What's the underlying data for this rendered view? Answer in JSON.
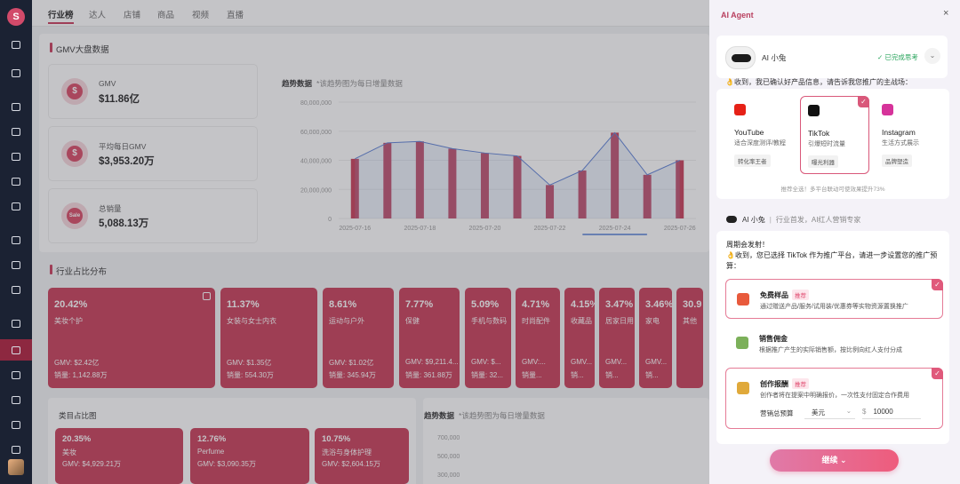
{
  "sidebar": {
    "logo_text": "S",
    "icons": [
      "cloud-icon",
      "chat-icon",
      "user-icon",
      "user-icon",
      "user-icon",
      "shop-icon",
      "doc-icon",
      "box-icon",
      "layers-icon",
      "person-icon",
      "diamond-icon",
      "analytics-icon",
      "user-icon",
      "user-icon",
      "edit-icon",
      "bag-icon"
    ]
  },
  "tabs": [
    "行业榜",
    "达人",
    "店铺",
    "商品",
    "视频",
    "直播"
  ],
  "gmv_section": {
    "title": "GMV大盘数据"
  },
  "kpis": [
    {
      "label": "GMV",
      "value": "$11.86亿",
      "icon": "dollar-icon",
      "glyph": "$"
    },
    {
      "label": "平均每日GMV",
      "value": "$3,953.20万",
      "icon": "dollar-icon",
      "glyph": "$"
    },
    {
      "label": "总销量",
      "value": "5,088.13万",
      "icon": "sale-icon",
      "glyph": "Sale"
    }
  ],
  "trend_chart": {
    "title": "趋势数据",
    "note": "*该趋势图为每日增量数据"
  },
  "chart_data": {
    "type": "bar",
    "categories": [
      "2025-07-16",
      "2025-07-17",
      "2025-07-18",
      "2025-07-19",
      "2025-07-20",
      "2025-07-21",
      "2025-07-22",
      "2025-07-23",
      "2025-07-24",
      "2025-07-25",
      "2025-07-26"
    ],
    "x_tick_labels": [
      "2025-07-16",
      "2025-07-18",
      "2025-07-20",
      "2025-07-22",
      "2025-07-24",
      "2025-07-26"
    ],
    "values": [
      41000000,
      52000000,
      53000000,
      48000000,
      45000000,
      43000000,
      23000000,
      33000000,
      59000000,
      30000000,
      40000000
    ],
    "line_values": [
      41000000,
      52000000,
      53000000,
      48000000,
      45000000,
      43000000,
      23000000,
      33000000,
      59000000,
      30000000,
      40000000
    ],
    "yticks": [
      "80,000,000",
      "60,000,000",
      "40,000,000",
      "20,000,000",
      "0"
    ],
    "ylim": [
      0,
      80000000
    ],
    "grid": true
  },
  "industry": {
    "title": "行业占比分布",
    "tiles": [
      {
        "pct": "20.42%",
        "name": "美妆个护",
        "gmv": "GMV: $2.42亿",
        "sales": "销量: 1,142.88万"
      },
      {
        "pct": "11.37%",
        "name": "女装与女士内衣",
        "gmv": "GMV: $1.35亿",
        "sales": "销量: 554.30万"
      },
      {
        "pct": "8.61%",
        "name": "运动与户外",
        "gmv": "GMV: $1.02亿",
        "sales": "销量: 345.94万"
      },
      {
        "pct": "7.77%",
        "name": "保健",
        "gmv": "GMV: $9,211.4...",
        "sales": "销量: 361.88万"
      },
      {
        "pct": "5.09%",
        "name": "手机与数码",
        "gmv": "GMV: $...",
        "sales": "销量: 32..."
      },
      {
        "pct": "4.71%",
        "name": "时尚配件",
        "gmv": "GMV:...",
        "sales": "销量..."
      },
      {
        "pct": "4.15%",
        "name": "收藏品",
        "gmv": "GMV...",
        "sales": "销..."
      },
      {
        "pct": "3.47%",
        "name": "居家日用",
        "gmv": "GMV...",
        "sales": "销..."
      },
      {
        "pct": "3.46%",
        "name": "家电",
        "gmv": "GMV...",
        "sales": "销..."
      },
      {
        "pct": "30.9",
        "name": "其他",
        "gmv": "",
        "sales": ""
      }
    ]
  },
  "category": {
    "title": "类目占比图",
    "tiles": [
      {
        "pct": "20.35%",
        "name": "美妆",
        "gmv": "GMV: $4,929.21万"
      },
      {
        "pct": "12.76%",
        "name": "Perfume",
        "gmv": "GMV: $3,090.35万"
      },
      {
        "pct": "10.75%",
        "name": "洗浴与身体护理",
        "gmv": "GMV: $2,604.15万"
      }
    ]
  },
  "trend2": {
    "title": "趋势数据",
    "note": "*该趋势图为每日增量数据",
    "yticks": [
      "700,000",
      "500,000",
      "300,000"
    ]
  },
  "agent": {
    "panel_title": "AI Agent",
    "close": "×",
    "name": "AI 小兔",
    "status": "✓ 已完成思考",
    "dropdown": "⌄",
    "msg1": "👌收到，我已确认好产品信息，请告诉我您推广的主战场：",
    "platforms": [
      {
        "name": "YouTube",
        "desc": "适合深度测评/教程",
        "badge": "转化率王者",
        "color": "#e62117",
        "icon": "youtube-icon"
      },
      {
        "name": "TikTok",
        "desc": "引爆短时流量",
        "badge": "曝光利器",
        "color": "#111111",
        "icon": "tiktok-icon"
      },
      {
        "name": "Instagram",
        "desc": "生活方式展示",
        "badge": "品牌塑造",
        "color": "#d6339a",
        "icon": "instagram-icon"
      }
    ],
    "platform_check": "✓",
    "rec_note": "推荐全选！多平台联动可使效果提升73%",
    "agent2_name": "AI 小兔",
    "agent2_sep": "|",
    "agent2_role": "行业首发，AI红人营销专家",
    "msg2_line1": "周期会发射！",
    "msg2_line2": "👌收到，您已选择 TikTok 作为推广平台，请进一步设置您的推广预算：",
    "options": [
      {
        "title": "免费样品",
        "tag": "推荐",
        "desc": "通过赠送产品/服务/试用装/优惠券等实物资源置换推广",
        "icon": "gift-icon",
        "color": "#e85a3c"
      },
      {
        "title": "销售佣金",
        "tag": "",
        "desc": "根据推广产生的实际销售额，按比例向红人支付分成",
        "icon": "money-icon",
        "color": "#7cb05a"
      },
      {
        "title": "创作报酬",
        "tag": "推荐",
        "desc": "创作者将在提案中明确报价，一次性支付固定合作费用",
        "icon": "moneybag-icon",
        "color": "#e0a93a"
      }
    ],
    "budget_label": "营销总预算",
    "currency": "美元",
    "currency_caret": "⌄",
    "currency_symbol": "$",
    "amount": "10000",
    "continue_label": "继续"
  }
}
